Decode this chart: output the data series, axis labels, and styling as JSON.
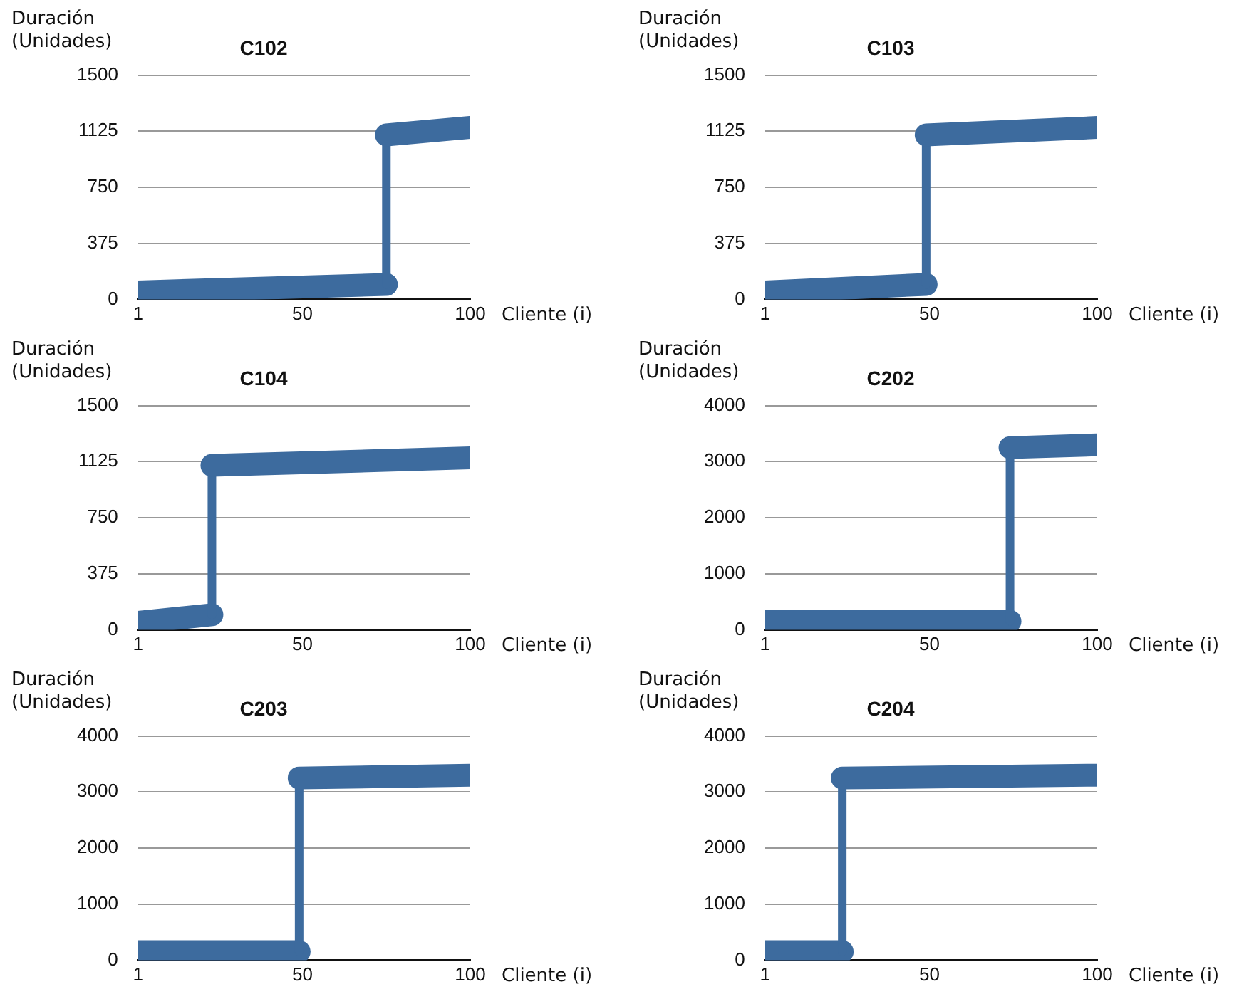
{
  "chart_data": [
    {
      "type": "line",
      "title": "C102",
      "xlabel": "Cliente (i)",
      "ylabel": "Duración (Unidades)",
      "xlim": [
        1,
        100
      ],
      "xticks": [
        1,
        50,
        100
      ],
      "ylim": [
        0,
        1500
      ],
      "yticks": [
        0,
        375,
        750,
        1125,
        1500
      ],
      "grid": "y",
      "series": [
        {
          "color": "#3d6b9e",
          "x": [
            1,
            75,
            75,
            100
          ],
          "values": [
            50,
            100,
            1100,
            1150
          ]
        }
      ]
    },
    {
      "type": "line",
      "title": "C103",
      "xlabel": "Cliente (i)",
      "ylabel": "Duración (Unidades)",
      "xlim": [
        1,
        100
      ],
      "xticks": [
        1,
        50,
        100
      ],
      "ylim": [
        0,
        1500
      ],
      "yticks": [
        0,
        375,
        750,
        1125,
        1500
      ],
      "grid": "y",
      "series": [
        {
          "color": "#3d6b9e",
          "x": [
            1,
            49,
            49,
            100
          ],
          "values": [
            50,
            100,
            1100,
            1150
          ]
        }
      ]
    },
    {
      "type": "line",
      "title": "C104",
      "xlabel": "Cliente (i)",
      "ylabel": "Duración (Unidades)",
      "xlim": [
        1,
        100
      ],
      "xticks": [
        1,
        50,
        100
      ],
      "ylim": [
        0,
        1500
      ],
      "yticks": [
        0,
        375,
        750,
        1125,
        1500
      ],
      "grid": "y",
      "series": [
        {
          "color": "#3d6b9e",
          "x": [
            1,
            23,
            23,
            100
          ],
          "values": [
            50,
            100,
            1100,
            1150
          ]
        }
      ]
    },
    {
      "type": "line",
      "title": "C202",
      "xlabel": "Cliente (i)",
      "ylabel": "Duración (Unidades)",
      "xlim": [
        1,
        100
      ],
      "xticks": [
        1,
        50,
        100
      ],
      "ylim": [
        0,
        4000
      ],
      "yticks": [
        0,
        1000,
        2000,
        3000,
        4000
      ],
      "grid": "y",
      "series": [
        {
          "color": "#3d6b9e",
          "x": [
            1,
            74,
            74,
            100
          ],
          "values": [
            150,
            150,
            3250,
            3300
          ]
        }
      ]
    },
    {
      "type": "line",
      "title": "C203",
      "xlabel": "Cliente (i)",
      "ylabel": "Duración (Unidades)",
      "xlim": [
        1,
        100
      ],
      "xticks": [
        1,
        50,
        100
      ],
      "ylim": [
        0,
        4000
      ],
      "yticks": [
        0,
        1000,
        2000,
        3000,
        4000
      ],
      "grid": "y",
      "series": [
        {
          "color": "#3d6b9e",
          "x": [
            1,
            49,
            49,
            100
          ],
          "values": [
            150,
            150,
            3250,
            3300
          ]
        }
      ]
    },
    {
      "type": "line",
      "title": "C204",
      "xlabel": "Cliente (i)",
      "ylabel": "Duración (Unidades)",
      "xlim": [
        1,
        100
      ],
      "xticks": [
        1,
        50,
        100
      ],
      "ylim": [
        0,
        4000
      ],
      "yticks": [
        0,
        1000,
        2000,
        3000,
        4000
      ],
      "grid": "y",
      "series": [
        {
          "color": "#3d6b9e",
          "x": [
            1,
            24,
            24,
            100
          ],
          "values": [
            150,
            150,
            3250,
            3300
          ]
        }
      ]
    }
  ]
}
